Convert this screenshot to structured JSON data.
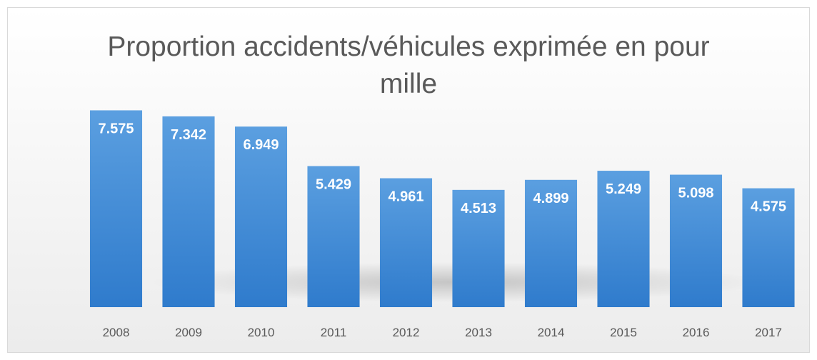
{
  "chart_data": {
    "type": "bar",
    "title": "Proportion accidents/véhicules exprimée en pour mille",
    "categories": [
      "2008",
      "2009",
      "2010",
      "2011",
      "2012",
      "2013",
      "2014",
      "2015",
      "2016",
      "2017"
    ],
    "values": [
      7.575,
      7.342,
      6.949,
      5.429,
      4.961,
      4.513,
      4.899,
      5.249,
      5.098,
      4.575
    ],
    "color": "#4a8fd6",
    "ylim": [
      0,
      8
    ]
  }
}
